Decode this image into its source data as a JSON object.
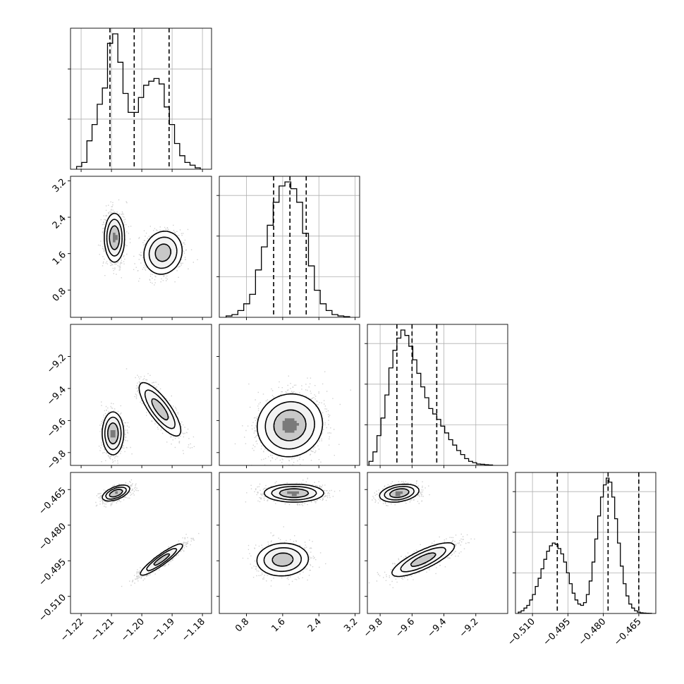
{
  "chart_data": {
    "type": "corner",
    "parameters": [
      {
        "index": 0,
        "range": [
          -1.2235,
          -1.177
        ],
        "ticks": [
          -1.22,
          -1.21,
          -1.2,
          -1.19,
          -1.18
        ],
        "tick_labels": [
          "−1.22",
          "−1.21",
          "−1.20",
          "−1.19",
          "−1.18"
        ],
        "quantiles": [
          -1.2105,
          -1.2025,
          -1.191
        ],
        "histogram": {
          "bin_edges": [
            -1.2215,
            -1.2198,
            -1.2181,
            -1.2164,
            -1.2147,
            -1.213,
            -1.2113,
            -1.2096,
            -1.2079,
            -1.2062,
            -1.2045,
            -1.2028,
            -1.2011,
            -1.1994,
            -1.1977,
            -1.196,
            -1.1943,
            -1.1926,
            -1.1909,
            -1.1892,
            -1.1875,
            -1.1858,
            -1.1841,
            -1.1824,
            -1.1807
          ],
          "counts": [
            0.02,
            0.05,
            0.21,
            0.33,
            0.48,
            0.6,
            0.93,
            1.0,
            0.79,
            0.56,
            0.42,
            0.42,
            0.53,
            0.62,
            0.65,
            0.67,
            0.63,
            0.46,
            0.33,
            0.19,
            0.1,
            0.05,
            0.03,
            0.01
          ]
        },
        "hist_ticks": [
          0.37,
          0.74
        ]
      },
      {
        "index": 1,
        "range": [
          0.2,
          3.3
        ],
        "ticks": [
          0.8,
          1.6,
          2.4,
          3.2
        ],
        "tick_labels": [
          "0.8",
          "1.6",
          "2.4",
          "3.2"
        ],
        "quantiles": [
          1.4,
          1.76,
          2.12
        ],
        "histogram": {
          "bin_edges": [
            0.35,
            0.48,
            0.61,
            0.74,
            0.87,
            1.0,
            1.13,
            1.26,
            1.39,
            1.52,
            1.65,
            1.78,
            1.91,
            2.04,
            2.17,
            2.3,
            2.43,
            2.56,
            2.69,
            2.82,
            2.95,
            3.08
          ],
          "counts": [
            0.01,
            0.02,
            0.05,
            0.1,
            0.17,
            0.35,
            0.52,
            0.68,
            0.85,
            0.97,
            1.0,
            0.95,
            0.85,
            0.62,
            0.38,
            0.2,
            0.1,
            0.05,
            0.02,
            0.01,
            0.005
          ]
        },
        "hist_ticks": [
          0.3,
          0.6,
          0.9
        ]
      },
      {
        "index": 2,
        "range": [
          -9.88,
          -9.0
        ],
        "ticks": [
          -9.8,
          -9.6,
          -9.4,
          -9.2
        ],
        "tick_labels": [
          "−9.8",
          "−9.6",
          "−9.4",
          "−9.2"
        ],
        "quantiles": [
          -9.695,
          -9.6,
          -9.445
        ],
        "histogram": {
          "bin_edges": [
            -9.87,
            -9.845,
            -9.82,
            -9.795,
            -9.77,
            -9.745,
            -9.72,
            -9.695,
            -9.67,
            -9.645,
            -9.62,
            -9.595,
            -9.57,
            -9.545,
            -9.52,
            -9.495,
            -9.47,
            -9.445,
            -9.42,
            -9.395,
            -9.37,
            -9.345,
            -9.32,
            -9.295,
            -9.27,
            -9.245,
            -9.22,
            -9.195,
            -9.17,
            -9.145,
            -9.12,
            -9.095
          ],
          "counts": [
            0.03,
            0.1,
            0.22,
            0.35,
            0.52,
            0.72,
            0.85,
            0.94,
            1.0,
            0.96,
            0.88,
            0.78,
            0.68,
            0.58,
            0.5,
            0.42,
            0.38,
            0.34,
            0.29,
            0.24,
            0.19,
            0.15,
            0.11,
            0.08,
            0.05,
            0.03,
            0.02,
            0.01,
            0.008,
            0.005,
            0.003
          ]
        },
        "hist_ticks": [
          0.3,
          0.6,
          0.9
        ]
      },
      {
        "index": 3,
        "range": [
          -0.5172,
          -0.4578
        ],
        "ticks": [
          -0.51,
          -0.495,
          -0.48,
          -0.465
        ],
        "tick_labels": [
          "−0.510",
          "−0.495",
          "−0.480",
          "−0.465"
        ],
        "quantiles": [
          -0.4995,
          -0.478,
          -0.465
        ],
        "histogram": {
          "bin_edges": [
            -0.516,
            -0.5148,
            -0.5136,
            -0.5124,
            -0.5112,
            -0.51,
            -0.5088,
            -0.5076,
            -0.5064,
            -0.5052,
            -0.504,
            -0.5028,
            -0.5016,
            -0.5004,
            -0.4992,
            -0.498,
            -0.4968,
            -0.4956,
            -0.4944,
            -0.4932,
            -0.492,
            -0.4908,
            -0.4896,
            -0.4884,
            -0.4872,
            -0.486,
            -0.4848,
            -0.4836,
            -0.4824,
            -0.4812,
            -0.48,
            -0.4788,
            -0.4776,
            -0.4764,
            -0.4752,
            -0.474,
            -0.4728,
            -0.4716,
            -0.4704,
            -0.4692,
            -0.468,
            -0.4668,
            -0.4656,
            -0.4644,
            -0.4632,
            -0.462,
            -0.4608,
            -0.4596
          ],
          "counts": [
            0.01,
            0.02,
            0.04,
            0.06,
            0.1,
            0.14,
            0.2,
            0.26,
            0.33,
            0.4,
            0.46,
            0.5,
            0.52,
            0.51,
            0.48,
            0.44,
            0.38,
            0.3,
            0.22,
            0.15,
            0.1,
            0.07,
            0.06,
            0.08,
            0.14,
            0.24,
            0.38,
            0.55,
            0.72,
            0.86,
            0.95,
            1.0,
            0.97,
            0.86,
            0.7,
            0.52,
            0.35,
            0.22,
            0.13,
            0.07,
            0.04,
            0.02,
            0.01,
            0.005,
            0.003,
            0.002,
            0.001
          ]
        },
        "hist_ticks": [
          0.3,
          0.6,
          0.9
        ]
      }
    ],
    "pairs": [
      {
        "row": 1,
        "col": 0,
        "modes": [
          {
            "cx": -1.209,
            "cy": 1.95,
            "sx": 0.0016,
            "sy": 0.26,
            "rho": 0.0,
            "w": 0.55
          },
          {
            "cx": -1.193,
            "cy": 1.62,
            "sx": 0.0032,
            "sy": 0.24,
            "rho": 0.1,
            "w": 0.45
          }
        ]
      },
      {
        "row": 2,
        "col": 0,
        "modes": [
          {
            "cx": -1.2095,
            "cy": -9.68,
            "sx": 0.0017,
            "sy": 0.065,
            "rho": 0.0,
            "w": 0.55
          },
          {
            "cx": -1.194,
            "cy": -9.53,
            "sx": 0.0035,
            "sy": 0.085,
            "rho": -0.8,
            "w": 0.45
          }
        ]
      },
      {
        "row": 2,
        "col": 1,
        "modes": [
          {
            "cx": 1.76,
            "cy": -9.63,
            "sx": 0.35,
            "sy": 0.095,
            "rho": 0.05,
            "w": 1.0
          }
        ]
      },
      {
        "row": 3,
        "col": 0,
        "modes": [
          {
            "cx": -1.2085,
            "cy": -0.4665,
            "sx": 0.0022,
            "sy": 0.0016,
            "rho": 0.55,
            "w": 0.55
          },
          {
            "cx": -1.1935,
            "cy": -0.4945,
            "sx": 0.0036,
            "sy": 0.0034,
            "rho": 0.92,
            "w": 0.45
          }
        ]
      },
      {
        "row": 3,
        "col": 1,
        "modes": [
          {
            "cx": 1.85,
            "cy": -0.4665,
            "sx": 0.32,
            "sy": 0.0018,
            "rho": 0.0,
            "w": 0.55
          },
          {
            "cx": 1.6,
            "cy": -0.4945,
            "sx": 0.29,
            "sy": 0.0035,
            "rho": 0.05,
            "w": 0.45
          }
        ]
      },
      {
        "row": 3,
        "col": 2,
        "modes": [
          {
            "cx": -9.68,
            "cy": -0.4665,
            "sx": 0.06,
            "sy": 0.0018,
            "rho": 0.3,
            "w": 0.55
          },
          {
            "cx": -9.53,
            "cy": -0.4945,
            "sx": 0.1,
            "sy": 0.0036,
            "rho": 0.8,
            "w": 0.45
          }
        ]
      }
    ],
    "contour_levels": [
      0.12,
      0.3,
      0.6
    ],
    "grid": true,
    "colors": {
      "axes": "#000000",
      "grid": "#b0b0b0",
      "scatter": "#7a7a7a",
      "density_dark": "#000000"
    }
  }
}
